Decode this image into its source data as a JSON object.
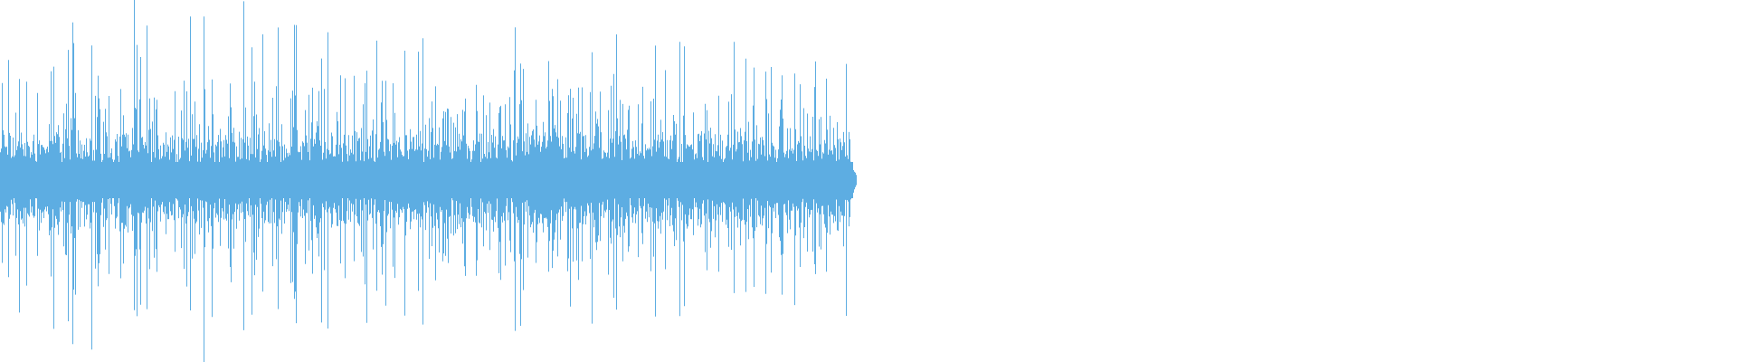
{
  "waveform": {
    "color": "#5DADE2",
    "background": "#FFFFFF",
    "filled_fraction": 0.493
  }
}
